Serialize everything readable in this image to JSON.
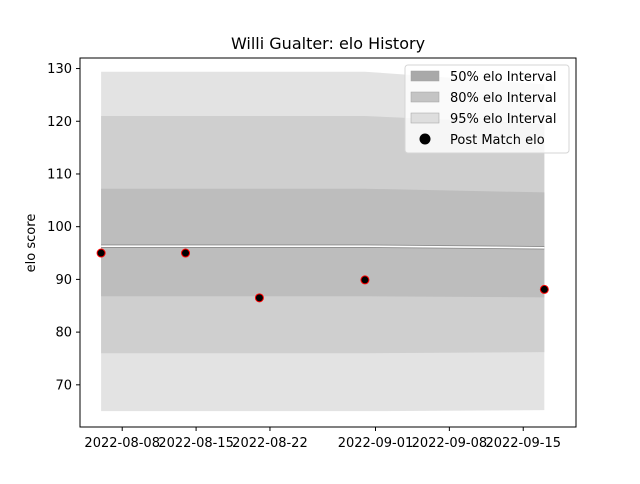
{
  "chart_data": {
    "type": "area",
    "title": "Willi Gualter: elo History",
    "xlabel": "",
    "ylabel": "elo score",
    "xlim": [
      "2022-08-04",
      "2022-09-20"
    ],
    "ylim": [
      62,
      132
    ],
    "x_ticks": [
      "2022-08-08",
      "2022-08-15",
      "2022-08-22",
      "2022-09-01",
      "2022-09-08",
      "2022-09-15"
    ],
    "y_ticks": [
      70,
      80,
      90,
      100,
      110,
      120,
      130
    ],
    "grid": false,
    "legend_position": "top-right",
    "x": [
      "2022-08-06",
      "2022-08-14",
      "2022-08-21",
      "2022-08-31",
      "2022-09-17"
    ],
    "mean": [
      96.3,
      96.3,
      96.3,
      96.3,
      96.0
    ],
    "bands": [
      {
        "name": "95% elo Interval",
        "color": "#e3e3e3",
        "upper": [
          129.4,
          129.4,
          129.4,
          129.4,
          127.0
        ],
        "lower": [
          65.0,
          65.0,
          65.0,
          65.0,
          65.2
        ]
      },
      {
        "name": "80% elo Interval",
        "color": "#cfcfcf",
        "upper": [
          121.0,
          121.0,
          121.0,
          121.0,
          119.5
        ],
        "lower": [
          76.0,
          76.0,
          76.0,
          76.0,
          76.2
        ]
      },
      {
        "name": "50% elo Interval",
        "color": "#bdbdbd",
        "upper": [
          107.2,
          107.2,
          107.2,
          107.2,
          106.5
        ],
        "lower": [
          86.8,
          86.8,
          86.8,
          86.8,
          86.6
        ]
      }
    ],
    "points": {
      "name": "Post Match elo",
      "color": "#000000",
      "edge_color": "#ff0000",
      "x": [
        "2022-08-06",
        "2022-08-14",
        "2022-08-21",
        "2022-08-31",
        "2022-09-17"
      ],
      "y": [
        95.0,
        95.0,
        86.5,
        89.9,
        88.1
      ]
    },
    "legend": [
      {
        "label": "50% elo Interval",
        "kind": "patch",
        "color": "#a9a9a9"
      },
      {
        "label": "80% elo Interval",
        "kind": "patch",
        "color": "#c4c4c4"
      },
      {
        "label": "95% elo Interval",
        "kind": "patch",
        "color": "#dedede"
      },
      {
        "label": "Post Match elo",
        "kind": "marker",
        "color": "#000000"
      }
    ]
  }
}
